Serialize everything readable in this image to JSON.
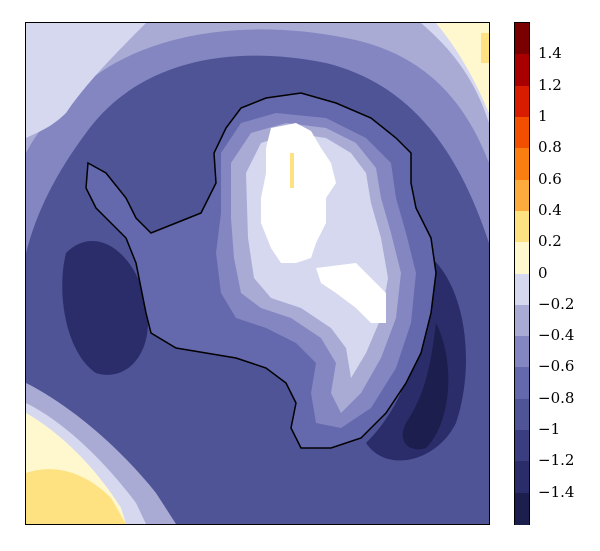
{
  "colorbar": {
    "min": -1.6,
    "max": 1.6,
    "step": 0.2,
    "ticks": [
      {
        "value": 1.4,
        "label": "1.4"
      },
      {
        "value": 1.2,
        "label": "1.2"
      },
      {
        "value": 1.0,
        "label": "1"
      },
      {
        "value": 0.8,
        "label": "0.8"
      },
      {
        "value": 0.6,
        "label": "0.6"
      },
      {
        "value": 0.4,
        "label": "0.4"
      },
      {
        "value": 0.2,
        "label": "0.2"
      },
      {
        "value": 0.0,
        "label": "0"
      },
      {
        "value": -0.2,
        "label": "−0.2"
      },
      {
        "value": -0.4,
        "label": "−0.4"
      },
      {
        "value": -0.6,
        "label": "−0.6"
      },
      {
        "value": -0.8,
        "label": "−0.8"
      },
      {
        "value": -1.0,
        "label": "−1"
      },
      {
        "value": -1.2,
        "label": "−1.2"
      },
      {
        "value": -1.4,
        "label": "−1.4"
      }
    ],
    "colors_top_to_bottom": [
      "#7a0000",
      "#a80000",
      "#d81c00",
      "#f25000",
      "#fb7f10",
      "#fcac3c",
      "#fee181",
      "#fff8cf",
      "#d6d8ef",
      "#a9abd5",
      "#8486c1",
      "#6468ad",
      "#4f5496",
      "#3a3e80",
      "#2a2d69",
      "#1c1e4d"
    ]
  },
  "map": {
    "region": "Antarctica",
    "colors": {
      "ocean_base": "#4f5496",
      "ocean_dark": "#3a3e80",
      "level_m02": "#d6d8ef",
      "level_m04": "#a9abd5",
      "level_m06": "#8486c1",
      "level_m08": "#6468ad",
      "level_m12": "#2a2d69",
      "level_m14": "#1c1e4d",
      "positive_low": "#fff8cf",
      "positive_mid": "#fee181",
      "outline": "#000000",
      "no_data": "#ffffff"
    }
  }
}
